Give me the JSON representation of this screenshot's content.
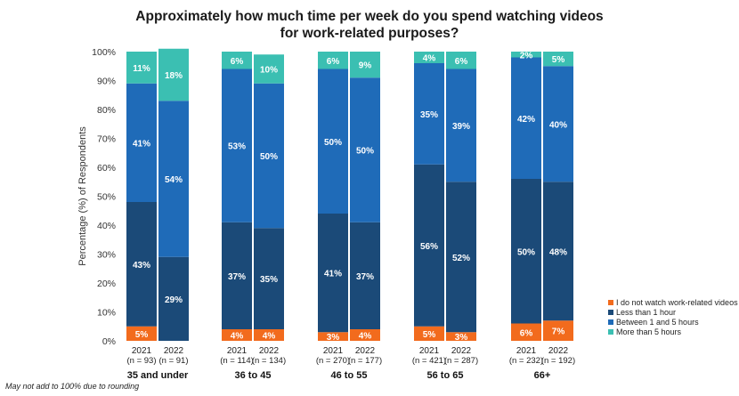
{
  "chart_data": {
    "type": "bar",
    "stacked": true,
    "title_lines": [
      "Approximately how much time per week do you spend watching videos",
      "for work-related purposes?"
    ],
    "ylabel": "Percentage (%) of Respondents",
    "ylim": [
      0,
      100
    ],
    "ytick_labels": [
      "0%",
      "10%",
      "20%",
      "30%",
      "40%",
      "50%",
      "60%",
      "70%",
      "80%",
      "90%",
      "100%"
    ],
    "grid": false,
    "legend_position": "bottom-right",
    "series": [
      {
        "name": "I do not watch work-related videos",
        "color": "#f26b1d"
      },
      {
        "name": "Less than 1 hour",
        "color": "#1b4a78"
      },
      {
        "name": "Between 1 and 5 hours",
        "color": "#1f6bb8"
      },
      {
        "name": "More than 5 hours",
        "color": "#3bbfb2"
      }
    ],
    "groups": [
      {
        "name": "35 and under",
        "bars": [
          {
            "year": "2021",
            "n": "(n = 93)",
            "values": [
              5,
              43,
              41,
              11
            ],
            "labels": [
              "5%",
              "43%",
              "41%",
              "11%"
            ]
          },
          {
            "year": "2022",
            "n": "(n = 91)",
            "values": [
              0,
              29,
              54,
              18
            ],
            "labels": [
              "",
              "29%",
              "54%",
              "18%"
            ]
          }
        ]
      },
      {
        "name": "36 to 45",
        "bars": [
          {
            "year": "2021",
            "n": "(n = 114)",
            "values": [
              4,
              37,
              53,
              6
            ],
            "labels": [
              "4%",
              "37%",
              "53%",
              "6%"
            ]
          },
          {
            "year": "2022",
            "n": "(n = 134)",
            "values": [
              4,
              35,
              50,
              10
            ],
            "labels": [
              "4%",
              "35%",
              "50%",
              "10%"
            ]
          }
        ]
      },
      {
        "name": "46 to 55",
        "bars": [
          {
            "year": "2021",
            "n": "(n = 270)",
            "values": [
              3,
              41,
              50,
              6
            ],
            "labels": [
              "3%",
              "41%",
              "50%",
              "6%"
            ]
          },
          {
            "year": "2022",
            "n": "(n = 177)",
            "values": [
              4,
              37,
              50,
              9
            ],
            "labels": [
              "4%",
              "37%",
              "50%",
              "9%"
            ]
          }
        ]
      },
      {
        "name": "56 to 65",
        "bars": [
          {
            "year": "2021",
            "n": "(n = 421)",
            "values": [
              5,
              56,
              35,
              4
            ],
            "labels": [
              "5%",
              "56%",
              "35%",
              "4%"
            ]
          },
          {
            "year": "2022",
            "n": "(n = 287)",
            "values": [
              3,
              52,
              39,
              6
            ],
            "labels": [
              "3%",
              "52%",
              "39%",
              "6%"
            ]
          }
        ]
      },
      {
        "name": "66+",
        "bars": [
          {
            "year": "2021",
            "n": "(n = 232)",
            "values": [
              6,
              50,
              42,
              2
            ],
            "labels": [
              "6%",
              "50%",
              "42%",
              "2%"
            ]
          },
          {
            "year": "2022",
            "n": "(n = 192)",
            "values": [
              7,
              48,
              40,
              5
            ],
            "labels": [
              "7%",
              "48%",
              "40%",
              "5%"
            ]
          }
        ]
      }
    ],
    "footnote": "May not add to 100% due to rounding"
  }
}
